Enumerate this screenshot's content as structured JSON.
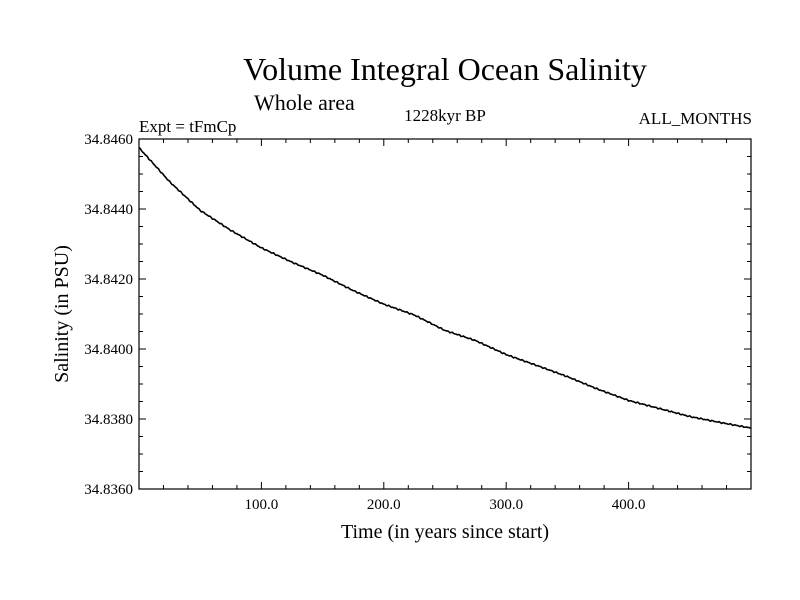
{
  "chart_data": {
    "type": "line",
    "title": "Volume Integral Ocean Salinity",
    "subtitle": "Whole area",
    "left_label": "Expt = tFmCp",
    "center_label": "1228kyr BP",
    "right_label": "ALL_MONTHS",
    "xlabel": "Time (in years since start)",
    "ylabel": "Salinity (in PSU)",
    "xlim": [
      0,
      500
    ],
    "ylim": [
      34.836,
      34.846
    ],
    "x_ticks": [
      100,
      200,
      300,
      400
    ],
    "x_tick_labels": [
      "100.0",
      "200.0",
      "300.0",
      "400.0"
    ],
    "y_ticks": [
      34.836,
      34.838,
      34.84,
      34.842,
      34.844,
      34.846
    ],
    "y_tick_labels": [
      "34.8360",
      "34.8380",
      "34.8400",
      "34.8420",
      "34.8440",
      "34.8460"
    ],
    "grid": false,
    "series": [
      {
        "name": "Salinity",
        "color": "#000000",
        "x": [
          0,
          25,
          50,
          75,
          100,
          125,
          150,
          175,
          200,
          225,
          250,
          275,
          300,
          325,
          350,
          375,
          400,
          425,
          450,
          475,
          500
        ],
        "values": [
          34.84575,
          34.84478,
          34.84396,
          34.84339,
          34.84289,
          34.84248,
          34.84211,
          34.84167,
          34.84128,
          34.84097,
          34.84053,
          34.84024,
          34.83984,
          34.83953,
          34.83921,
          34.83885,
          34.83853,
          34.8383,
          34.83807,
          34.8379,
          34.83774
        ]
      }
    ]
  }
}
